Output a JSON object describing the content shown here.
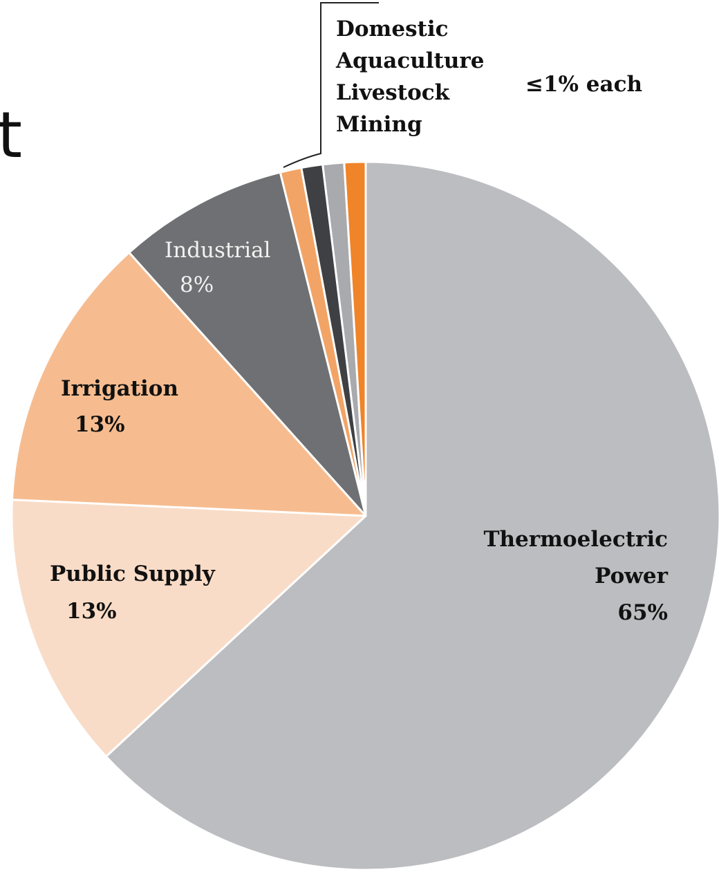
{
  "stray_text": "t",
  "chart_data": {
    "type": "pie",
    "slices": [
      {
        "label": "Thermoelectric Power",
        "value": 65,
        "value_label": "65%",
        "color": "#bcbdc0"
      },
      {
        "label": "Public Supply",
        "value": 13,
        "value_label": "13%",
        "color": "#f9dcc7"
      },
      {
        "label": "Irrigation",
        "value": 13,
        "value_label": "13%",
        "color": "#f6bc8f"
      },
      {
        "label": "Industrial",
        "value": 8,
        "value_label": "8%",
        "color": "#6f7073"
      },
      {
        "label": "Domestic",
        "value": 1,
        "color": "#f2a466"
      },
      {
        "label": "Aquaculture",
        "value": 1,
        "color": "#3f4043"
      },
      {
        "label": "Livestock",
        "value": 1,
        "color": "#a9aaad"
      },
      {
        "label": "Mining",
        "value": 1,
        "color": "#f08428"
      }
    ],
    "small_group": {
      "members": [
        "Domestic",
        "Aquaculture",
        "Livestock",
        "Mining"
      ],
      "note": "≤1% each"
    }
  }
}
